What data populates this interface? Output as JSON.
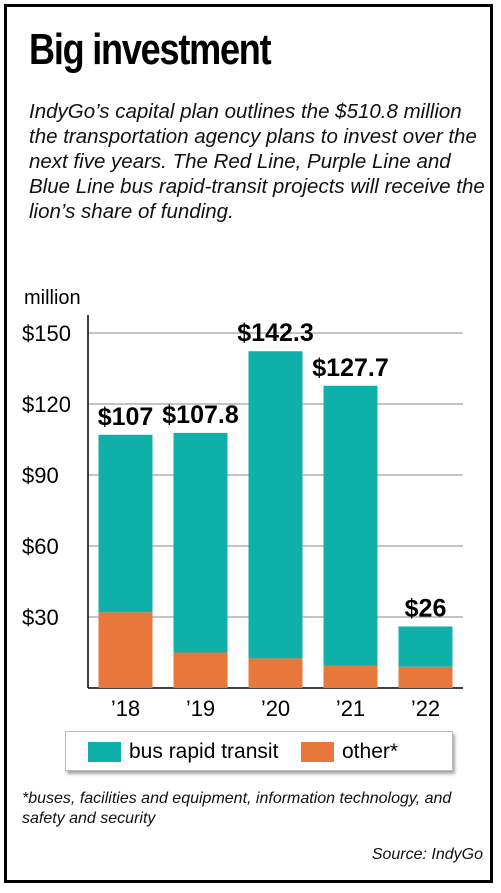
{
  "title": "Big investment",
  "subtitle": "IndyGo’s capital plan outlines the $510.8 million the transportation agency plans to invest over the next five years. The Red Line, Purple Line and Blue Line bus rapid-transit projects will receive the lion’s share of funding.",
  "footnote": "*buses, facilities and equipment, information technology, and safety and security",
  "source": "Source: IndyGo",
  "colors": {
    "bus_rapid_transit": "#10b0aa",
    "other": "#e8773c"
  },
  "chart_data": {
    "type": "bar",
    "stacked": true,
    "title": "Big investment",
    "ylabel": "million",
    "ylim": [
      0,
      150
    ],
    "yticks": [
      30,
      60,
      90,
      120,
      150
    ],
    "ytick_labels": [
      "$30",
      "$60",
      "$90",
      "$120",
      "$150"
    ],
    "grid": true,
    "legend_position": "bottom",
    "categories": [
      "’18",
      "’19",
      "’20",
      "’21",
      "’22"
    ],
    "totals": [
      107,
      107.8,
      142.3,
      127.7,
      26
    ],
    "total_labels": [
      "$107",
      "$107.8",
      "$142.3",
      "$127.7",
      "$26"
    ],
    "series": [
      {
        "name": "other*",
        "values": [
          32,
          15,
          12.5,
          9.5,
          9
        ]
      },
      {
        "name": "bus rapid transit",
        "values": [
          75,
          92.8,
          129.8,
          118.2,
          17
        ]
      }
    ]
  },
  "legend": {
    "items": [
      "bus rapid transit",
      "other*"
    ]
  }
}
